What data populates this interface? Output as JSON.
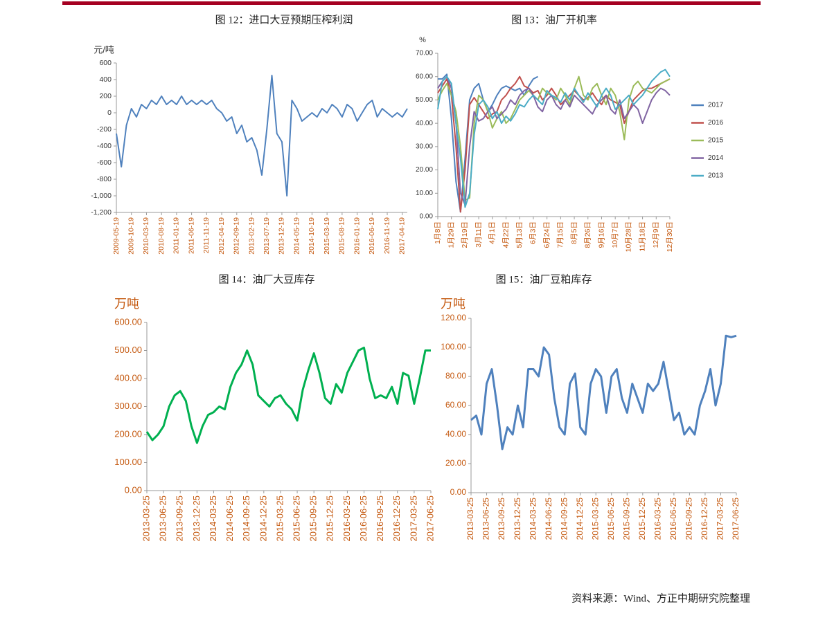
{
  "chart_data": [
    {
      "type": "line",
      "title": "图 12：进口大豆预期压榨利润",
      "y_label": "元/吨",
      "categories": [
        "2009-05-19",
        null,
        null,
        "2009-10-19",
        null,
        null,
        "2010-03-19",
        null,
        null,
        "2010-08-19",
        null,
        null,
        "2011-01-19",
        null,
        null,
        "2011-06-19",
        null,
        null,
        "2011-11-19",
        null,
        null,
        "2012-04-19",
        null,
        null,
        "2012-09-19",
        null,
        null,
        "2013-02-19",
        null,
        null,
        "2013-07-19",
        null,
        null,
        "2013-12-19",
        null,
        null,
        "2014-05-19",
        null,
        null,
        "2014-10-19",
        null,
        null,
        "2015-03-19",
        null,
        null,
        "2015-08-19",
        null,
        null,
        "2016-01-19",
        null,
        null,
        "2016-06-19",
        null,
        null,
        "2016-11-19",
        null,
        null,
        "2017-04-19",
        null
      ],
      "values": [
        -250,
        -650,
        -150,
        50,
        -50,
        100,
        50,
        150,
        100,
        200,
        100,
        150,
        100,
        200,
        100,
        150,
        100,
        150,
        100,
        150,
        50,
        0,
        -100,
        -50,
        -250,
        -150,
        -350,
        -300,
        -450,
        -750,
        -200,
        450,
        -250,
        -350,
        -1000,
        150,
        50,
        -100,
        -50,
        0,
        -50,
        50,
        0,
        100,
        50,
        -50,
        100,
        50,
        -100,
        0,
        100,
        150,
        -50,
        50,
        0,
        -50,
        0,
        -50,
        50
      ],
      "color": "#4f81bd",
      "ylim": [
        -1200,
        600
      ],
      "yticks": [
        {
          "value": -1200,
          "label": "-1,200"
        },
        {
          "value": -1000,
          "label": "-1,000"
        },
        -800,
        -600,
        -400,
        -200,
        0,
        200,
        400,
        600
      ],
      "grid": false
    },
    {
      "type": "line",
      "title": "图 13：油厂开机率",
      "y_label": "%",
      "categories": [
        "1月8日",
        null,
        null,
        "1月29日",
        null,
        null,
        "2月19日",
        null,
        null,
        "3月11日",
        null,
        null,
        "4月1日",
        null,
        null,
        "4月22日",
        null,
        null,
        "5月13日",
        null,
        null,
        "6月3日",
        null,
        null,
        "6月24日",
        null,
        null,
        "7月15日",
        null,
        null,
        "8月5日",
        null,
        null,
        "8月26日",
        null,
        null,
        "9月16日",
        null,
        null,
        "10月7日",
        null,
        null,
        "10月28日",
        null,
        null,
        "11月18日",
        null,
        null,
        "12月9日",
        null,
        null,
        "12月30日"
      ],
      "series": [
        {
          "name": "2017",
          "color": "#4f81bd",
          "values": [
            59,
            59,
            61,
            42,
            15,
            2,
            25,
            50,
            55,
            57,
            50,
            45,
            48,
            52,
            55,
            56,
            55,
            54,
            55,
            52,
            56,
            59,
            60,
            null,
            null,
            null,
            null,
            null,
            null,
            null,
            null,
            null,
            null,
            null,
            null,
            null,
            null,
            null,
            null,
            null,
            null,
            null,
            null,
            null,
            null,
            null,
            null,
            null,
            null,
            null,
            null,
            null
          ]
        },
        {
          "name": "2016",
          "color": "#c0504d",
          "values": [
            53,
            56,
            59,
            52,
            30,
            2,
            20,
            48,
            51,
            48,
            45,
            42,
            44,
            45,
            50,
            52,
            55,
            57,
            60,
            56,
            55,
            53,
            54,
            50,
            52,
            55,
            52,
            48,
            50,
            52,
            54,
            52,
            50,
            51,
            53,
            50,
            48,
            52,
            50,
            49,
            48,
            40,
            45,
            50,
            52,
            54,
            55,
            55,
            56,
            57,
            58,
            59
          ]
        },
        {
          "name": "2015",
          "color": "#9bbb59",
          "values": [
            50,
            54,
            57,
            52,
            45,
            30,
            7,
            8,
            40,
            52,
            50,
            45,
            38,
            42,
            45,
            40,
            42,
            46,
            50,
            52,
            54,
            52,
            50,
            55,
            53,
            52,
            50,
            55,
            52,
            48,
            55,
            60,
            52,
            50,
            55,
            57,
            52,
            48,
            55,
            52,
            45,
            33,
            50,
            56,
            58,
            55,
            54,
            53,
            55,
            57,
            58,
            59
          ]
        },
        {
          "name": "2014",
          "color": "#8064a2",
          "values": [
            55,
            58,
            60,
            55,
            40,
            10,
            5,
            30,
            45,
            41,
            42,
            45,
            47,
            42,
            44,
            46,
            50,
            48,
            52,
            54,
            55,
            52,
            47,
            45,
            50,
            52,
            48,
            46,
            50,
            47,
            52,
            50,
            48,
            46,
            44,
            48,
            50,
            52,
            46,
            44,
            50,
            42,
            45,
            48,
            46,
            40,
            45,
            50,
            53,
            55,
            54,
            52
          ]
        },
        {
          "name": "2013",
          "color": "#4bacc6",
          "values": [
            46,
            58,
            60,
            57,
            40,
            25,
            4,
            10,
            35,
            48,
            50,
            47,
            42,
            45,
            40,
            43,
            41,
            44,
            48,
            47,
            50,
            52,
            50,
            48,
            54,
            52,
            51,
            49,
            53,
            50,
            55,
            52,
            49,
            53,
            50,
            47,
            52,
            55,
            52,
            46,
            48,
            50,
            52,
            48,
            50,
            52,
            55,
            58,
            60,
            62,
            63,
            60
          ]
        }
      ],
      "ylim": [
        0,
        70
      ],
      "yticks": [
        {
          "value": 0,
          "label": "0.00"
        },
        {
          "value": 10,
          "label": "10.00"
        },
        {
          "value": 20,
          "label": "20.00"
        },
        {
          "value": 30,
          "label": "30.00"
        },
        {
          "value": 40,
          "label": "40.00"
        },
        {
          "value": 50,
          "label": "50.00"
        },
        {
          "value": 60,
          "label": "60.00"
        },
        {
          "value": 70,
          "label": "70.00"
        }
      ],
      "legend": "right",
      "grid": false
    },
    {
      "type": "line",
      "title": "图 14：油厂大豆库存",
      "y_label": "万吨",
      "categories": [
        "2013-03-25",
        null,
        null,
        "2013-06-25",
        null,
        null,
        "2013-09-25",
        null,
        null,
        "2013-12-25",
        null,
        null,
        "2014-03-25",
        null,
        null,
        "2014-06-25",
        null,
        null,
        "2014-09-25",
        null,
        null,
        "2014-12-25",
        null,
        null,
        "2015-03-25",
        null,
        null,
        "2015-06-25",
        null,
        null,
        "2015-09-25",
        null,
        null,
        "2015-12-25",
        null,
        null,
        "2016-03-25",
        null,
        null,
        "2016-06-25",
        null,
        null,
        "2016-09-25",
        null,
        null,
        "2016-12-25",
        null,
        null,
        "2017-03-25",
        null,
        null,
        "2017-06-25"
      ],
      "values": [
        210,
        180,
        200,
        230,
        300,
        340,
        355,
        320,
        230,
        170,
        230,
        270,
        280,
        300,
        290,
        370,
        420,
        450,
        500,
        450,
        340,
        320,
        300,
        330,
        340,
        310,
        290,
        250,
        360,
        430,
        490,
        420,
        330,
        310,
        380,
        350,
        420,
        460,
        500,
        510,
        400,
        330,
        340,
        330,
        370,
        310,
        420,
        410,
        310,
        400,
        500,
        500
      ],
      "color": "#00b050",
      "ylim": [
        0,
        600
      ],
      "yticks": [
        {
          "value": 0,
          "label": "0.00"
        },
        {
          "value": 100,
          "label": "100.00"
        },
        {
          "value": 200,
          "label": "200.00"
        },
        {
          "value": 300,
          "label": "300.00"
        },
        {
          "value": 400,
          "label": "400.00"
        },
        {
          "value": 500,
          "label": "500.00"
        },
        {
          "value": 600,
          "label": "600.00"
        }
      ],
      "grid": false
    },
    {
      "type": "line",
      "title": "图 15：油厂豆粕库存",
      "y_label": "万吨",
      "categories": [
        "2013-03-25",
        null,
        null,
        "2013-06-25",
        null,
        null,
        "2013-09-25",
        null,
        null,
        "2013-12-25",
        null,
        null,
        "2014-03-25",
        null,
        null,
        "2014-06-25",
        null,
        null,
        "2014-09-25",
        null,
        null,
        "2014-12-25",
        null,
        null,
        "2015-03-25",
        null,
        null,
        "2015-06-25",
        null,
        null,
        "2015-09-25",
        null,
        null,
        "2015-12-25",
        null,
        null,
        "2016-03-25",
        null,
        null,
        "2016-06-25",
        null,
        null,
        "2016-09-25",
        null,
        null,
        "2016-12-25",
        null,
        null,
        "2017-03-25",
        null,
        null,
        "2017-06-25"
      ],
      "values": [
        50,
        53,
        40,
        75,
        85,
        60,
        30,
        45,
        40,
        60,
        45,
        85,
        85,
        80,
        100,
        95,
        65,
        45,
        40,
        75,
        82,
        45,
        40,
        75,
        85,
        80,
        55,
        80,
        85,
        65,
        55,
        75,
        65,
        55,
        75,
        70,
        75,
        90,
        70,
        50,
        55,
        40,
        45,
        40,
        60,
        70,
        85,
        60,
        75,
        108,
        107,
        108
      ],
      "color": "#4f81bd",
      "ylim": [
        0,
        120
      ],
      "yticks": [
        {
          "value": 0,
          "label": "0.00"
        },
        {
          "value": 20,
          "label": "20.00"
        },
        {
          "value": 40,
          "label": "40.00"
        },
        {
          "value": 60,
          "label": "60.00"
        },
        {
          "value": 80,
          "label": "80.00"
        },
        {
          "value": 100,
          "label": "100.00"
        },
        {
          "value": 120,
          "label": "120.00"
        }
      ],
      "grid": false
    }
  ],
  "source": "资料来源：Wind、方正中期研究院整理"
}
